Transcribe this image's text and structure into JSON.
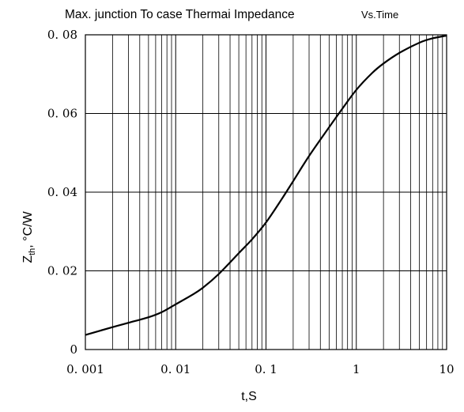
{
  "chart_data": {
    "type": "line",
    "title": "Max. junction To case Thermai Impedance",
    "subtitle": "Vs.Time",
    "xlabel": "t,S",
    "ylabel": {
      "main": "Z",
      "sub": "th",
      "unit": ", °C/W"
    },
    "x_scale": "log",
    "xlim": [
      0.001,
      10
    ],
    "ylim": [
      0,
      0.08
    ],
    "grid": true,
    "x_ticks": [
      {
        "value": 0.001,
        "label": "0. 001"
      },
      {
        "value": 0.01,
        "label": "0. 01"
      },
      {
        "value": 0.1,
        "label": "0. 1"
      },
      {
        "value": 1,
        "label": "1"
      },
      {
        "value": 10,
        "label": "10"
      }
    ],
    "y_ticks": [
      {
        "value": 0,
        "label": "0"
      },
      {
        "value": 0.02,
        "label": "0. 02"
      },
      {
        "value": 0.04,
        "label": "0. 04"
      },
      {
        "value": 0.06,
        "label": "0. 06"
      },
      {
        "value": 0.08,
        "label": "0. 08"
      }
    ],
    "series": [
      {
        "color": "#000000",
        "x": [
          0.001,
          0.002,
          0.003,
          0.005,
          0.007,
          0.01,
          0.015,
          0.02,
          0.03,
          0.05,
          0.07,
          0.1,
          0.15,
          0.2,
          0.3,
          0.5,
          0.7,
          1,
          1.5,
          2,
          3,
          5,
          7,
          10
        ],
        "y": [
          0.0037,
          0.0057,
          0.0068,
          0.0082,
          0.0095,
          0.0115,
          0.0138,
          0.0157,
          0.0192,
          0.0245,
          0.028,
          0.0323,
          0.0383,
          0.0428,
          0.0492,
          0.0565,
          0.0612,
          0.066,
          0.0703,
          0.0727,
          0.0754,
          0.078,
          0.0791,
          0.0798
        ]
      }
    ]
  }
}
